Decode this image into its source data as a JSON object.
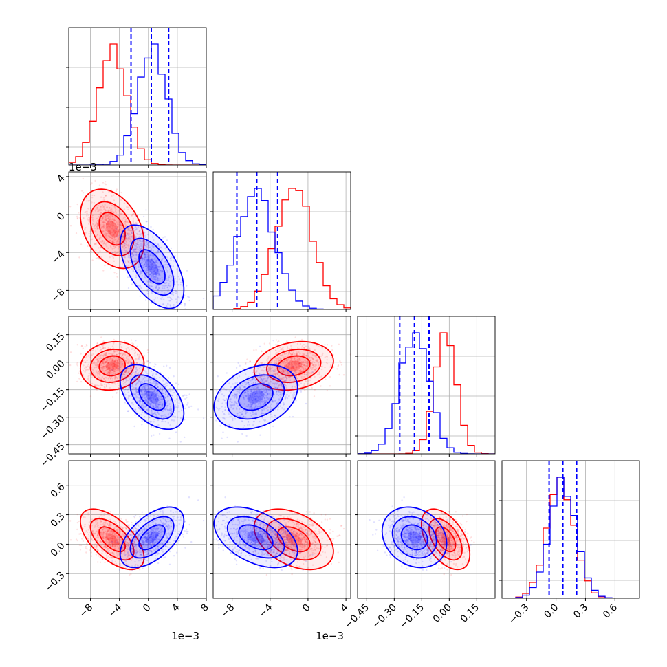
{
  "colors": {
    "series_a": "#ff0000",
    "series_b": "#0000ff",
    "grid": "#b0b0b0",
    "frame": "#000000"
  },
  "chart_data": {
    "type": "corner",
    "grid": true,
    "parameters": [
      {
        "range": [
          -11,
          8
        ],
        "ticks": [
          -8,
          -4,
          0,
          4,
          8
        ],
        "tick_labels": [
          "−8",
          "−4",
          "0",
          "4",
          "8"
        ],
        "offset_text": "1e−3",
        "ylim_2d": [
          -11,
          4.5
        ]
      },
      {
        "range": [
          -10,
          4.5
        ],
        "ticks": [
          -8,
          -4,
          0,
          4
        ],
        "tick_labels": [
          "−8",
          "−4",
          "0",
          "4"
        ],
        "offset_text": "1e−3",
        "ylim_2d": [
          -10,
          4.5
        ]
      },
      {
        "range": [
          -0.5,
          0.25
        ],
        "ticks": [
          -0.45,
          -0.3,
          -0.15,
          0,
          0.15
        ],
        "tick_labels": [
          "−0.45",
          "−0.30",
          "−0.15",
          "0.00",
          "0.15"
        ],
        "offset_text": ""
      },
      {
        "range": [
          -0.55,
          0.85
        ],
        "ticks": [
          -0.3,
          0,
          0.3,
          0.6
        ],
        "tick_labels": [
          "−0.3",
          "0.0",
          "0.3",
          "0.6"
        ],
        "offset_text": ""
      }
    ],
    "left_offset_texts": [
      "1e−3"
    ],
    "series": [
      {
        "color": "#ff0000",
        "mean": [
          -5.0,
          -1.5,
          -0.02,
          0.05
        ],
        "std": [
          2.0,
          1.9,
          0.06,
          0.14
        ],
        "corr": {
          "0-1": -0.35,
          "0-2": 0.1,
          "0-3": -0.6,
          "1-2": 0.2,
          "1-3": -0.4,
          "2-3": -0.5
        }
      },
      {
        "color": "#0000ff",
        "mean": [
          0.5,
          -5.5,
          -0.19,
          0.07
        ],
        "std": [
          2.0,
          2.0,
          0.08,
          0.14
        ],
        "corr": {
          "0-1": -0.55,
          "0-2": -0.5,
          "0-3": 0.55,
          "1-2": 0.3,
          "1-3": -0.45,
          "2-3": -0.2
        }
      }
    ],
    "quantiles_b": [
      [
        -2.4,
        0.4,
        2.8
      ],
      [
        -7.5,
        -5.4,
        -3.2
      ],
      [
        -0.27,
        -0.19,
        -0.11
      ],
      [
        -0.07,
        0.07,
        0.21
      ]
    ]
  }
}
